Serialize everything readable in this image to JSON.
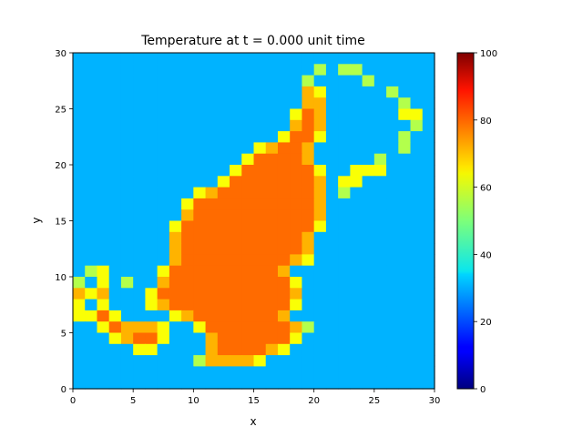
{
  "chart_data": {
    "type": "heatmap",
    "title": "Temperature at t = 0.000 unit time",
    "xlabel": "x",
    "ylabel": "y",
    "xlim": [
      0,
      30
    ],
    "ylim": [
      0,
      30
    ],
    "x_ticks": [
      0,
      5,
      10,
      15,
      20,
      25,
      30
    ],
    "y_ticks": [
      0,
      5,
      10,
      15,
      20,
      25,
      30
    ],
    "colorbar": {
      "min": 0,
      "max": 100,
      "ticks": [
        0,
        20,
        40,
        60,
        80,
        100
      ],
      "colormap": "jet"
    },
    "grid_size": 30,
    "rows_top_to_bottom": [
      "000000000000000000000000000000",
      "000000000000000000001011000000",
      "000000000000000000010000100000",
      "000000000000000000011000001000",
      "000000000000000000011000000100",
      "000000000000000000111000000110",
      "000000000000000000111000000010",
      "000000000000000001111000000100",
      "000000000000000111110000000100",
      "000000000000001111110000010000",
      "000000000000011111111001110000",
      "000000000000111111111011000000",
      "000000000011111111111010000000",
      "000000000111111111111000000000",
      "000000000111111111111000000000",
      "000000001111111111111000000000",
      "000000001111111111110000000000",
      "000000001111111111110000000000",
      "000000001111111111110000000000",
      "011000011111111111000000000000",
      "101010011111111111100000000000",
      "111000111111111111100000000000",
      "101000111111111111100000000000",
      "111100001111111111000000000000",
      "001111110011111111110000000000",
      "000111110001111111100000000000",
      "000001100001111111000000000000",
      "000000000011111100000000000000",
      "000000000000000000000000000000",
      "000000000000000000000000000000"
    ],
    "levels": {
      "background": 30,
      "core": 77,
      "edge_warm": 70,
      "edge_mid": 62,
      "edge_cool": 55
    }
  }
}
